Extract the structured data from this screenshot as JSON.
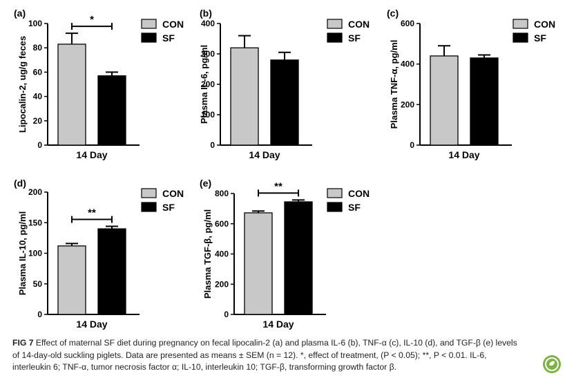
{
  "colors": {
    "con": "#c8c8c8",
    "sf": "#000000",
    "logo": "#7cb342"
  },
  "chart_data": [
    {
      "type": "bar",
      "panel_label": "(a)",
      "ylabel": "Lipocalin-2, ug/g feces",
      "xlabel": "14 Day",
      "ylim": [
        0,
        100
      ],
      "yticks": [
        "0",
        "20",
        "40",
        "60",
        "80",
        "100"
      ],
      "categories": [
        "14 Day"
      ],
      "series": [
        {
          "name": "CON",
          "values": [
            83
          ],
          "error": [
            9
          ]
        },
        {
          "name": "SF",
          "values": [
            57
          ],
          "error": [
            3
          ]
        }
      ],
      "significance": "*"
    },
    {
      "type": "bar",
      "panel_label": "(b)",
      "ylabel": "Plasma IL-6, pg/ml",
      "xlabel": "14 Day",
      "ylim": [
        0,
        400
      ],
      "yticks": [
        "0",
        "100",
        "200",
        "300",
        "400"
      ],
      "categories": [
        "14 Day"
      ],
      "series": [
        {
          "name": "CON",
          "values": [
            320
          ],
          "error": [
            40
          ]
        },
        {
          "name": "SF",
          "values": [
            280
          ],
          "error": [
            25
          ]
        }
      ],
      "significance": ""
    },
    {
      "type": "bar",
      "panel_label": "(c)",
      "ylabel": "Plasma TNF-α, pg/ml",
      "xlabel": "14 Day",
      "ylim": [
        0,
        600
      ],
      "yticks": [
        "0",
        "200",
        "400",
        "600"
      ],
      "categories": [
        "14 Day"
      ],
      "series": [
        {
          "name": "CON",
          "values": [
            440
          ],
          "error": [
            50
          ]
        },
        {
          "name": "SF",
          "values": [
            430
          ],
          "error": [
            15
          ]
        }
      ],
      "significance": ""
    },
    {
      "type": "bar",
      "panel_label": "(d)",
      "ylabel": "Plasma IL-10, pg/ml",
      "xlabel": "14 Day",
      "ylim": [
        0,
        200
      ],
      "yticks": [
        "0",
        "50",
        "100",
        "150",
        "200"
      ],
      "categories": [
        "14 Day"
      ],
      "series": [
        {
          "name": "CON",
          "values": [
            112
          ],
          "error": [
            4
          ]
        },
        {
          "name": "SF",
          "values": [
            140
          ],
          "error": [
            4
          ]
        }
      ],
      "significance": "**"
    },
    {
      "type": "bar",
      "panel_label": "(e)",
      "ylabel": "Plasma TGF-β, pg/ml",
      "xlabel": "14 Day",
      "ylim": [
        0,
        800
      ],
      "yticks": [
        "0",
        "200",
        "400",
        "600",
        "800"
      ],
      "categories": [
        "14 Day"
      ],
      "series": [
        {
          "name": "CON",
          "values": [
            672
          ],
          "error": [
            12
          ]
        },
        {
          "name": "SF",
          "values": [
            745
          ],
          "error": [
            12
          ]
        }
      ],
      "significance": "**"
    }
  ],
  "caption": {
    "label": "FIG 7",
    "line1": "Effect of maternal SF diet during pregnancy on fecal lipocalin-2 (a) and plasma IL-6 (b), TNF-α (c), IL-10 (d), and TGF-β (e) levels",
    "line2": "of 14-day-old suckling piglets. Data are presented as means ± SEM (n = 12). *, effect of treatment, (P < 0.05); **, P < 0.01. IL-6,",
    "line3": "interleukin 6; TNF-α, tumor necrosis factor α; IL-10, interleukin 10; TGF-β, transforming growth factor β."
  }
}
